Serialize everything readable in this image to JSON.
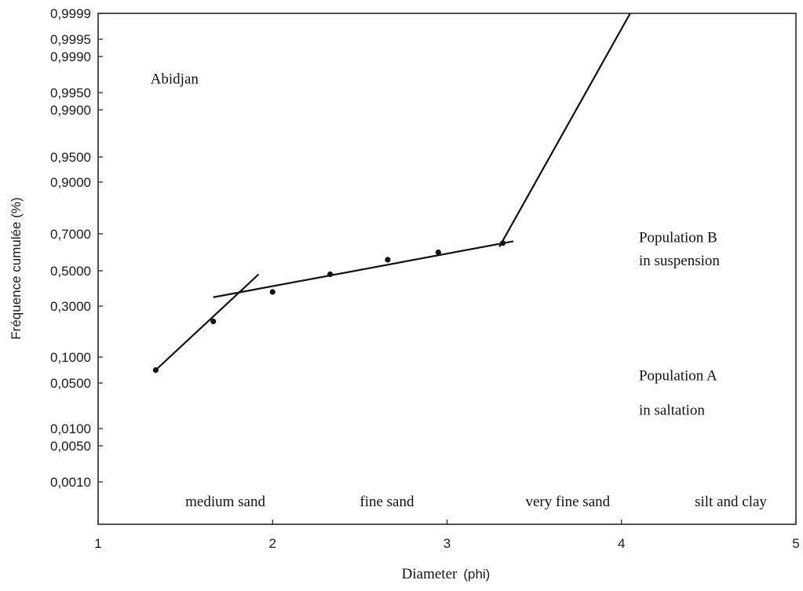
{
  "chart_data": {
    "type": "scatter",
    "title": "",
    "xlabel": "Diameter",
    "xlabel_unit": "(phi)",
    "ylabel": "Fréquence cumulée (%)",
    "xlim": [
      1,
      5
    ],
    "x_ticks": [
      "1",
      "2",
      "3",
      "4",
      "5"
    ],
    "y_scale": "probability",
    "y_ticks": [
      {
        "value": 0.001,
        "label": "0,0010"
      },
      {
        "value": 0.005,
        "label": "0,0050"
      },
      {
        "value": 0.01,
        "label": "0,0100"
      },
      {
        "value": 0.05,
        "label": "0,0500"
      },
      {
        "value": 0.1,
        "label": "0,1000"
      },
      {
        "value": 0.3,
        "label": "0,3000"
      },
      {
        "value": 0.5,
        "label": "0,5000"
      },
      {
        "value": 0.7,
        "label": "0,7000"
      },
      {
        "value": 0.9,
        "label": "0,9000"
      },
      {
        "value": 0.95,
        "label": "0,9500"
      },
      {
        "value": 0.99,
        "label": "0,9900"
      },
      {
        "value": 0.995,
        "label": "0,9950"
      },
      {
        "value": 0.999,
        "label": "0,9990"
      },
      {
        "value": 0.9995,
        "label": "0,9995"
      },
      {
        "value": 0.9999,
        "label": "0,9999"
      }
    ],
    "grid": false,
    "points": [
      {
        "x": 1.33,
        "y": 0.075
      },
      {
        "x": 1.66,
        "y": 0.24
      },
      {
        "x": 2.0,
        "y": 0.38
      },
      {
        "x": 2.33,
        "y": 0.48
      },
      {
        "x": 2.66,
        "y": 0.56
      },
      {
        "x": 2.95,
        "y": 0.6
      },
      {
        "x": 3.32,
        "y": 0.65
      }
    ],
    "fit_lines": [
      {
        "name": "Population A",
        "x": [
          1.33,
          1.92
        ],
        "y": [
          0.075,
          0.48
        ]
      },
      {
        "name": "Population B",
        "x": [
          1.66,
          3.38
        ],
        "y": [
          0.35,
          0.66
        ]
      },
      {
        "name": "",
        "x": [
          3.3,
          4.05
        ],
        "y": [
          0.63,
          0.9999
        ]
      }
    ],
    "annotations": [
      {
        "id": "site",
        "text": "Abidjan",
        "x": 1.3,
        "y": 0.996
      },
      {
        "id": "pop-b-line1",
        "text": "Population B",
        "x": 4.1,
        "y": 0.655
      },
      {
        "id": "pop-b-line2",
        "text": "in suspension",
        "x": 4.1,
        "y": 0.53
      },
      {
        "id": "pop-a-line1",
        "text": "Population A",
        "x": 4.1,
        "y": 0.055
      },
      {
        "id": "pop-a-line2",
        "text": "in saltation",
        "x": 4.1,
        "y": 0.022
      },
      {
        "id": "zone-medium",
        "text": "medium sand",
        "x": 1.5,
        "y": 0.0004
      },
      {
        "id": "zone-fine",
        "text": "fine sand",
        "x": 2.5,
        "y": 0.0004
      },
      {
        "id": "zone-very-fine",
        "text": "very fine sand",
        "x": 3.45,
        "y": 0.0004
      },
      {
        "id": "zone-silt",
        "text": "silt and clay",
        "x": 4.42,
        "y": 0.0004
      }
    ]
  }
}
